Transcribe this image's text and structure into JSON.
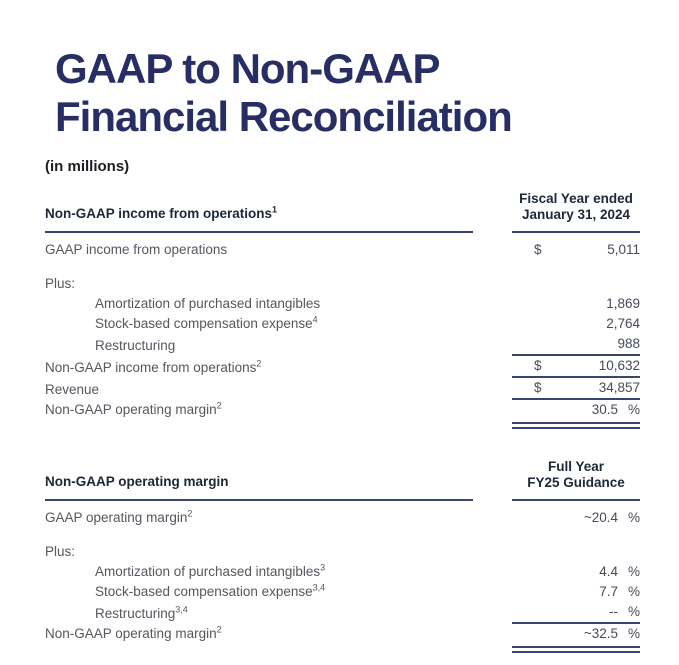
{
  "page": {
    "title_line1": "GAAP to Non-GAAP",
    "title_line2": "Financial Reconciliation",
    "units_note": "(in millions)"
  },
  "colors": {
    "title_navy": "#272e64",
    "heading_text": "#1e2637",
    "body_text": "#53575e",
    "number_text": "#454b59",
    "rule_navy": "#39456f"
  },
  "table1": {
    "header_left": {
      "text": "Non-GAAP income from operations",
      "sup": "1"
    },
    "header_right": {
      "line1": "Fiscal Year ended",
      "line2": "January 31, 2024"
    },
    "plus_label": "Plus:",
    "rows": [
      {
        "label": "GAAP income from operations",
        "currency": "$",
        "value": "5,011"
      },
      {
        "label": "Amortization of purchased intangibles",
        "value": "1,869"
      },
      {
        "label": "Stock-based compensation expense",
        "sup": "4",
        "value": "2,764"
      },
      {
        "label": "Restructuring",
        "value": "988"
      },
      {
        "label": "Non-GAAP income from operations",
        "sup": "2",
        "currency": "$",
        "value": "10,632"
      },
      {
        "label": "Revenue",
        "currency": "$",
        "value": "34,857"
      },
      {
        "label": "Non-GAAP operating margin",
        "sup": "2",
        "value": "30.5",
        "unit": "%"
      }
    ]
  },
  "table2": {
    "header_left": {
      "text": "Non-GAAP operating margin"
    },
    "header_right": {
      "line1": "Full Year",
      "line2": "FY25 Guidance"
    },
    "plus_label": "Plus:",
    "rows": [
      {
        "label": "GAAP operating margin",
        "sup": "2",
        "value": "~20.4",
        "unit": "%"
      },
      {
        "label": "Amortization of purchased intangibles",
        "sup": "3",
        "value": "4.4",
        "unit": "%"
      },
      {
        "label": "Stock-based compensation expense",
        "sup": "3,4",
        "value": "7.7",
        "unit": "%"
      },
      {
        "label": "Restructuring",
        "sup": "3,4",
        "value": "--",
        "unit": "%"
      },
      {
        "label": "Non-GAAP operating margin",
        "sup": "2",
        "value": "~32.5",
        "unit": "%"
      }
    ]
  }
}
